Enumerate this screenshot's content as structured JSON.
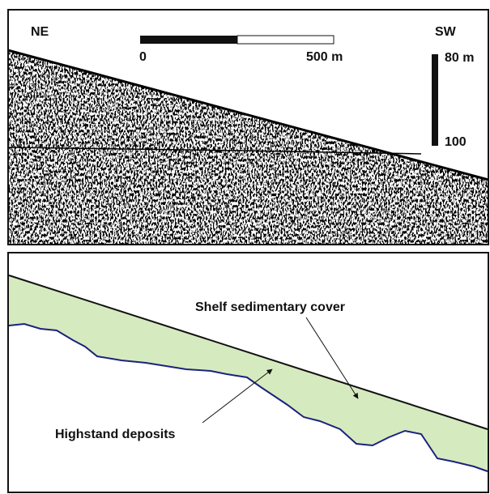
{
  "profile": {
    "left_label": "NE",
    "right_label": "SW",
    "scale_bar": {
      "start_label": "0",
      "end_label": "500 m"
    },
    "depth_bar": {
      "top_label": "80 m",
      "bottom_label": "100"
    }
  },
  "interpretation": {
    "upper_unit": "Shelf sedimentary cover",
    "lower_unit": "Highstand deposits"
  }
}
